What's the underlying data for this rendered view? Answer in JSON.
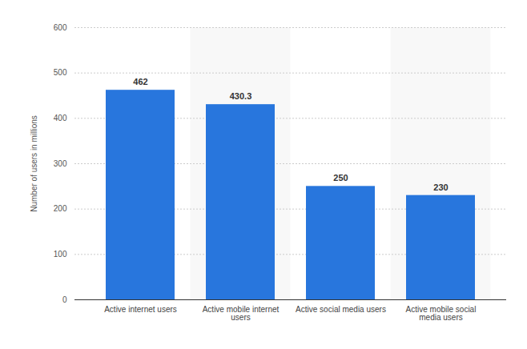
{
  "chart_data": {
    "type": "bar",
    "y_label": "Number of users in millions",
    "categories": [
      "Active internet users",
      "Active mobile internet users",
      "Active social media users",
      "Active mobile social media users"
    ],
    "values": [
      462,
      430.3,
      250,
      230
    ],
    "color": "#2876dd",
    "ylim": [
      0,
      600
    ],
    "yticks": [
      0,
      100,
      200,
      300,
      400,
      500,
      600
    ],
    "grid": true,
    "data_labels": true
  }
}
